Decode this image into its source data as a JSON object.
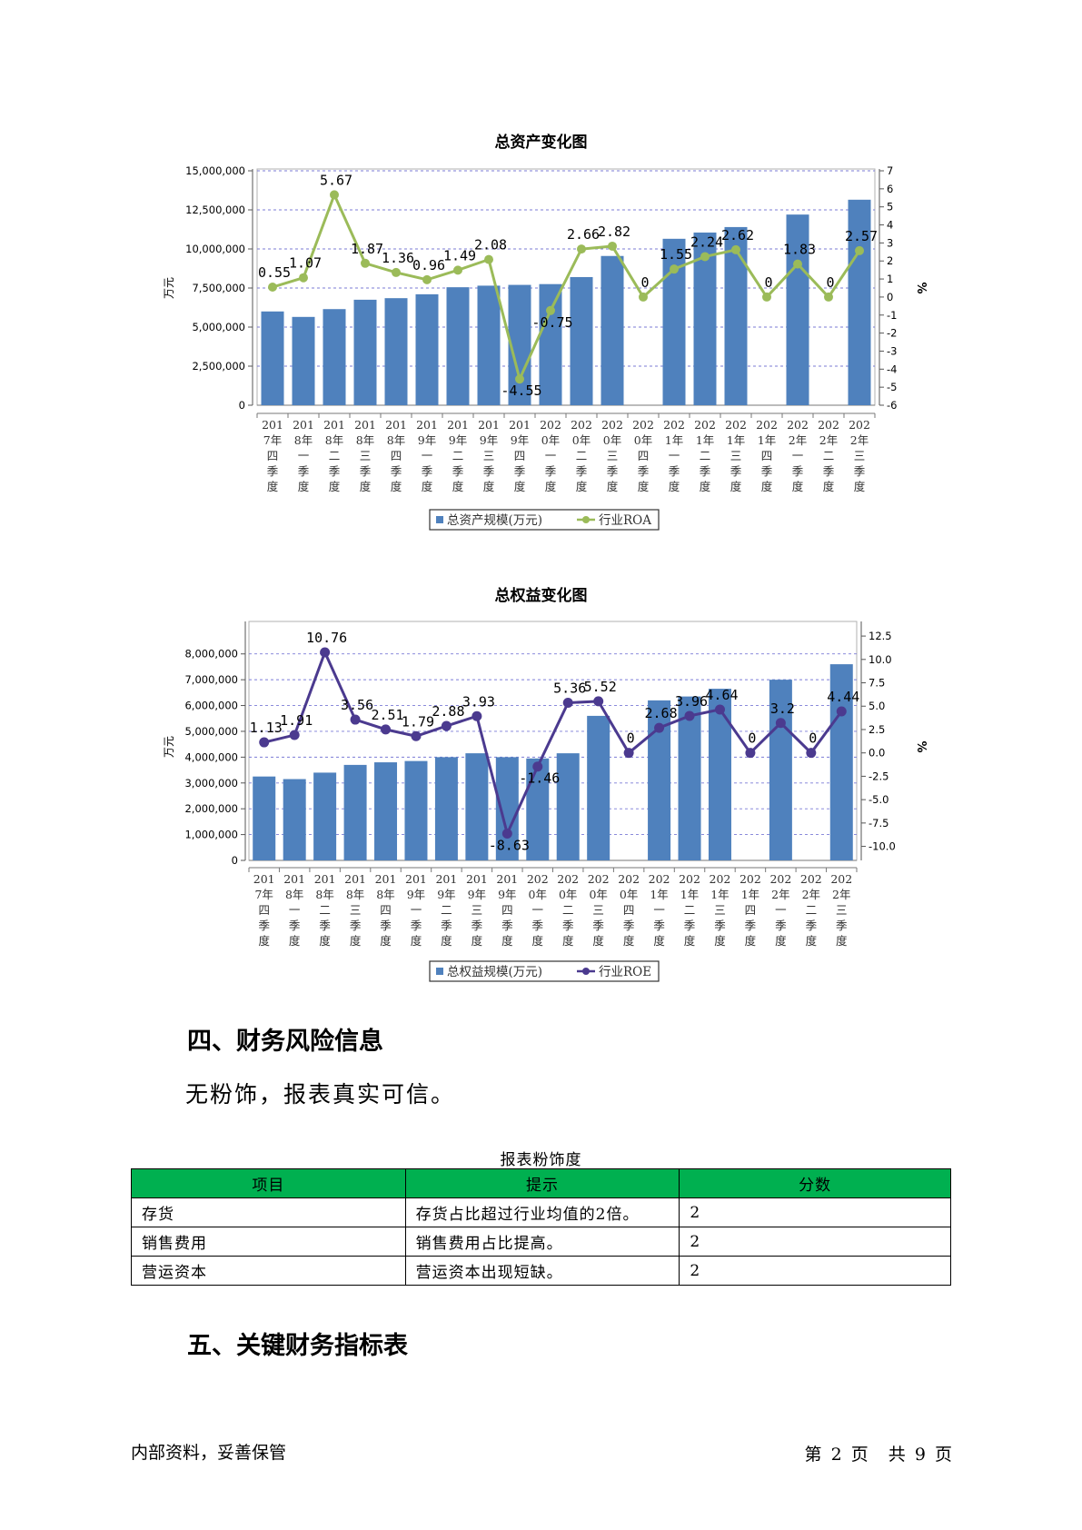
{
  "chart_data": [
    {
      "type": "bar+line",
      "title": "总资产变化图",
      "categories": [
        "2017年四季度",
        "2018年一季度",
        "2018年二季度",
        "2018年三季度",
        "2018年四季度",
        "2019年一季度",
        "2019年二季度",
        "2019年三季度",
        "2019年四季度",
        "2020年一季度",
        "2020年二季度",
        "2020年三季度",
        "2020年四季度",
        "2021年一季度",
        "2021年二季度",
        "2021年三季度",
        "2021年四季度",
        "2022年一季度",
        "2022年二季度",
        "2022年三季度"
      ],
      "bar_series": {
        "name": "总资产规模(万元)",
        "values": [
          6000000,
          5650000,
          6150000,
          6750000,
          6850000,
          7100000,
          7550000,
          7650000,
          7700000,
          7750000,
          8200000,
          9550000,
          null,
          10650000,
          11050000,
          11400000,
          null,
          12200000,
          null,
          13150000
        ]
      },
      "line_series": {
        "name": "行业ROA",
        "values": [
          0.55,
          1.07,
          5.67,
          1.87,
          1.36,
          0.96,
          1.49,
          2.08,
          -4.55,
          -0.75,
          2.66,
          2.82,
          0,
          1.55,
          2.24,
          2.62,
          0,
          1.83,
          0,
          2.57
        ]
      },
      "line_labels": [
        "0.55",
        "1.07",
        "5.67",
        "1.87",
        "1.36",
        "0.96",
        "1.49",
        "2.08",
        "-4.55",
        "-0.75",
        "2.66",
        "2.82",
        "0",
        "1.55",
        "2.24",
        "2.62",
        "0",
        "1.83",
        "0",
        "2.57"
      ],
      "ylabel": "万元",
      "y2label": "%",
      "ylim": [
        0,
        15000000
      ],
      "y2lim": [
        -6,
        7
      ],
      "y_ticks": [
        0,
        2500000,
        5000000,
        7500000,
        10000000,
        12500000,
        15000000
      ],
      "y_tick_labels": [
        "0",
        "2,500,000",
        "5,000,000",
        "7,500,000",
        "10,000,000",
        "12,500,000",
        "15,000,000"
      ],
      "y2_ticks": [
        -6,
        -5,
        -4,
        -3,
        -2,
        -1,
        0,
        1,
        2,
        3,
        4,
        5,
        6,
        7
      ],
      "y2_tick_labels": [
        "-6",
        "-5",
        "-4",
        "-3",
        "-2",
        "-1",
        "0",
        "1",
        "2",
        "3",
        "4",
        "5",
        "6",
        "7"
      ],
      "grid": true,
      "legend": "bottom",
      "bar_color": "#4f81bd",
      "line_color": "#9bbb59"
    },
    {
      "type": "bar+line",
      "title": "总权益变化图",
      "categories": [
        "2017年四季度",
        "2018年一季度",
        "2018年二季度",
        "2018年三季度",
        "2018年四季度",
        "2019年一季度",
        "2019年二季度",
        "2019年三季度",
        "2019年四季度",
        "2020年一季度",
        "2020年二季度",
        "2020年三季度",
        "2020年四季度",
        "2021年一季度",
        "2021年二季度",
        "2021年三季度",
        "2021年四季度",
        "2022年一季度",
        "2022年二季度",
        "2022年三季度"
      ],
      "bar_series": {
        "name": "总权益规模(万元)",
        "values": [
          3250000,
          3150000,
          3400000,
          3700000,
          3800000,
          3850000,
          4000000,
          4150000,
          4000000,
          3950000,
          4150000,
          5600000,
          null,
          6200000,
          6350000,
          6650000,
          null,
          7000000,
          null,
          7600000
        ]
      },
      "line_series": {
        "name": "行业ROE",
        "values": [
          1.13,
          1.91,
          10.76,
          3.56,
          2.51,
          1.79,
          2.88,
          3.93,
          -8.63,
          -1.46,
          5.36,
          5.52,
          0,
          2.68,
          3.96,
          4.64,
          0,
          3.2,
          0,
          4.44
        ]
      },
      "line_labels": [
        "1.13",
        "1.91",
        "10.76",
        "3.56",
        "2.51",
        "1.79",
        "2.88",
        "3.93",
        "-8.63",
        "-1.46",
        "5.36",
        "5.52",
        "0",
        "2.68",
        "3.96",
        "4.64",
        "0",
        "3.2",
        "0",
        "4.44"
      ],
      "ylabel": "万元",
      "y2label": "%",
      "ylim": [
        0,
        8800000
      ],
      "y2lim": [
        -11.5,
        12.8
      ],
      "y_ticks": [
        0,
        1000000,
        2000000,
        3000000,
        4000000,
        5000000,
        6000000,
        7000000,
        8000000
      ],
      "y_tick_labels": [
        "0",
        "1,000,000",
        "2,000,000",
        "3,000,000",
        "4,000,000",
        "5,000,000",
        "6,000,000",
        "7,000,000",
        "8,000,000"
      ],
      "y2_ticks": [
        -10,
        -7.5,
        -5,
        -2.5,
        0,
        2.5,
        5,
        7.5,
        10,
        12.5
      ],
      "y2_tick_labels": [
        "-10.0",
        "-7.5",
        "-5.0",
        "-2.5",
        "0.0",
        "2.5",
        "5.0",
        "7.5",
        "10.0",
        "12.5"
      ],
      "grid": true,
      "legend": "bottom",
      "bar_color": "#4f81bd",
      "line_color": "#4b3a8f"
    }
  ],
  "section4": {
    "heading": "四、财务风险信息",
    "text": "无粉饰，报表真实可信。"
  },
  "table": {
    "caption": "报表粉饰度",
    "headers": [
      "项目",
      "提示",
      "分数"
    ],
    "rows": [
      [
        "存货",
        "存货占比超过行业均值的2倍。",
        "2"
      ],
      [
        "销售费用",
        "销售费用占比提高。",
        "2"
      ],
      [
        "营运资本",
        "营运资本出现短缺。",
        "2"
      ]
    ],
    "header_color": "#00b050"
  },
  "section5": {
    "heading": "五、关键财务指标表"
  },
  "footer": {
    "left": "内部资料，妥善保管",
    "page_prefix": "第",
    "page_num": "2",
    "page_unit": "页",
    "total_prefix": "共",
    "total_num": "9",
    "total_unit": "页"
  }
}
